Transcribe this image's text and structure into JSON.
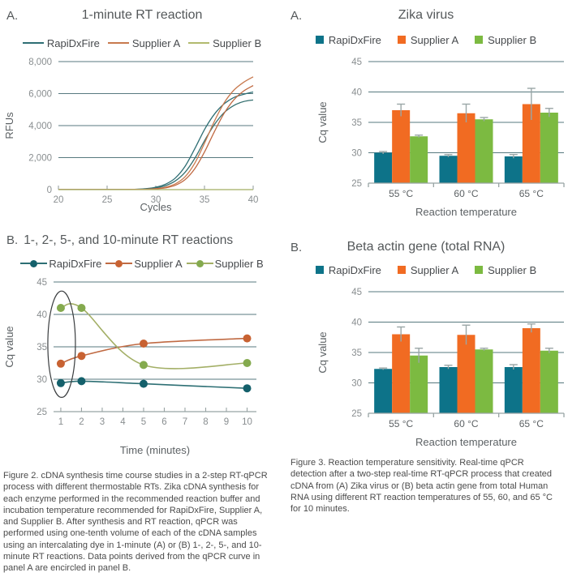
{
  "palette": {
    "grid": "#57797f",
    "axis": "#98a3a3",
    "tick_text": "#898e90",
    "label_text": "#5d6265",
    "title_text": "#54585a",
    "legend_text": "#46494c",
    "caption_text": "#4b4b4b",
    "error_bar": "#9aa6a6",
    "ellipse": "#3a3d3f",
    "bar_teal": "#0d7389",
    "bar_orange": "#f16b22",
    "bar_green": "#7cba41"
  },
  "figure2_caption": "Figure 2. cDNA synthesis time course studies in a 2-step RT-qPCR process with different thermostable RTs. Zika cDNA synthesis for each enzyme performed in the recommended reaction buffer and incubation temperature recommended for RapiDxFire, Supplier A, and Supplier B. After synthesis and RT reaction, qPCR was performed using one-tenth volume of each of the cDNA samples using an intercalating dye in 1-minute (A) or (B) 1-, 2-, 5-, and 10-minute RT reactions. Data points derived from the qPCR curve in panel A are encircled in panel B.",
  "figure3_caption": "Figure 3. Reaction temperature sensitivity. Real-time qPCR detection after a two-step real-time RT-qPCR process that created cDNA from (A) Zika virus or (B) beta actin gene from total Human RNA using different RT reaction temperatures of 55, 60, and 65 °C for 10 minutes.",
  "chart_data": [
    {
      "id": "fig2a",
      "panel_label": "A.",
      "type": "line",
      "title": "1-minute RT reaction",
      "xlabel": "Cycles",
      "ylabel": "RFUs",
      "xlim": [
        20,
        40
      ],
      "ylim": [
        0,
        8000
      ],
      "xticks": [
        20,
        25,
        30,
        35,
        40
      ],
      "yticks": [
        0,
        2000,
        4000,
        6000,
        8000
      ],
      "ytick_labels": [
        "0",
        "2,000",
        "4,000",
        "6,000",
        "8,000"
      ],
      "grid": "on",
      "legend_position": "top",
      "x": [
        20,
        21,
        22,
        23,
        24,
        25,
        26,
        27,
        28,
        29,
        30,
        31,
        32,
        33,
        34,
        35,
        36,
        37,
        38,
        39,
        40
      ],
      "series": [
        {
          "name": "RapiDxFire",
          "color": "#2e6e74",
          "in_legend": true,
          "y": [
            5,
            5,
            6,
            6,
            7,
            8,
            10,
            14,
            25,
            60,
            150,
            340,
            720,
            1450,
            2550,
            3750,
            4700,
            5350,
            5750,
            5950,
            6100
          ]
        },
        {
          "name": "RapiDxFire",
          "color": "#357070",
          "in_legend": false,
          "y": [
            5,
            5,
            5,
            6,
            6,
            7,
            9,
            12,
            20,
            45,
            110,
            250,
            540,
            1080,
            1950,
            3050,
            4050,
            4800,
            5250,
            5500,
            5600
          ]
        },
        {
          "name": "Supplier A",
          "color": "#c8794e",
          "in_legend": true,
          "y": [
            5,
            5,
            5,
            5,
            6,
            6,
            7,
            9,
            13,
            25,
            60,
            150,
            360,
            800,
            1650,
            2900,
            4250,
            5400,
            6200,
            6700,
            7050
          ]
        },
        {
          "name": "Supplier A",
          "color": "#c06a43",
          "in_legend": false,
          "y": [
            5,
            5,
            5,
            5,
            5,
            6,
            7,
            8,
            11,
            20,
            45,
            110,
            270,
            620,
            1300,
            2350,
            3600,
            4750,
            5600,
            6150,
            6500
          ]
        },
        {
          "name": "Supplier B",
          "color": "#b2ba6e",
          "in_legend": true,
          "y": [
            0,
            0,
            0,
            0,
            0,
            0,
            0,
            0,
            0,
            0,
            0,
            0,
            0,
            0,
            0,
            0,
            0,
            0,
            0,
            0,
            0
          ]
        }
      ]
    },
    {
      "id": "fig3a",
      "panel_label": "A.",
      "type": "bar",
      "title": "Zika virus",
      "xlabel": "Reaction temperature",
      "ylabel": "Cq value",
      "categories": [
        "55 °C",
        "60 °C",
        "65 °C"
      ],
      "ylim": [
        25,
        45
      ],
      "yticks": [
        25,
        30,
        35,
        40,
        45
      ],
      "grid": "on",
      "legend_position": "top",
      "series": [
        {
          "name": "RapiDxFire",
          "color": "#0d7389",
          "values": [
            30.0,
            29.5,
            29.4
          ],
          "errors": [
            0.2,
            0.2,
            0.3
          ]
        },
        {
          "name": "Supplier A",
          "color": "#f16b22",
          "values": [
            37.0,
            36.5,
            38.0
          ],
          "errors": [
            1.0,
            1.5,
            2.6
          ]
        },
        {
          "name": "Supplier B",
          "color": "#7cba41",
          "values": [
            32.7,
            35.5,
            36.6
          ],
          "errors": [
            0.2,
            0.3,
            0.7
          ]
        }
      ]
    },
    {
      "id": "fig2b",
      "panel_label": "B.",
      "type": "line-markers",
      "title": "1-, 2-, 5-, and 10-minute RT reactions",
      "xlabel": "Time (minutes)",
      "ylabel": "Cq value",
      "x": [
        1,
        2,
        5,
        10
      ],
      "xticks": [
        1,
        2,
        3,
        4,
        5,
        6,
        7,
        8,
        9,
        10
      ],
      "xlim": [
        0.65,
        10.45
      ],
      "ylim": [
        25,
        45
      ],
      "yticks": [
        25,
        30,
        35,
        40,
        45
      ],
      "grid": "on",
      "legend_position": "top",
      "series": [
        {
          "name": "RapiDxFire",
          "color": "#2d6f74",
          "marker_color": "#14606b",
          "values": [
            29.4,
            29.7,
            29.3,
            28.6
          ]
        },
        {
          "name": "Supplier A",
          "color": "#c06a43",
          "marker_color": "#c86232",
          "values": [
            32.4,
            33.6,
            35.5,
            36.3
          ]
        },
        {
          "name": "Supplier B",
          "color": "#a3af66",
          "marker_color": "#84aa4e",
          "values": [
            41.0,
            41.0,
            32.2,
            32.5
          ]
        }
      ],
      "annotation": {
        "type": "ellipse",
        "label": "1-minute data points encircled",
        "at_time": 1,
        "center_cq": 35.4,
        "radius_cq": 8.2,
        "radius_px_x": 17
      }
    },
    {
      "id": "fig3b",
      "panel_label": "B.",
      "type": "bar",
      "title": "Beta actin gene (total RNA)",
      "xlabel": "Reaction temperature",
      "ylabel": "Cq value",
      "categories": [
        "55 °C",
        "60 °C",
        "65 °C"
      ],
      "ylim": [
        25,
        45
      ],
      "yticks": [
        25,
        30,
        35,
        40,
        45
      ],
      "grid": "on",
      "legend_position": "top",
      "series": [
        {
          "name": "RapiDxFire",
          "color": "#0d7389",
          "values": [
            32.3,
            32.6,
            32.6
          ],
          "errors": [
            0.15,
            0.3,
            0.4
          ]
        },
        {
          "name": "Supplier A",
          "color": "#f16b22",
          "values": [
            38.0,
            37.9,
            39.0
          ],
          "errors": [
            1.2,
            1.6,
            0.7
          ]
        },
        {
          "name": "Supplier B",
          "color": "#7cba41",
          "values": [
            34.5,
            35.5,
            35.3
          ],
          "errors": [
            1.2,
            0.2,
            0.4
          ]
        }
      ]
    }
  ]
}
